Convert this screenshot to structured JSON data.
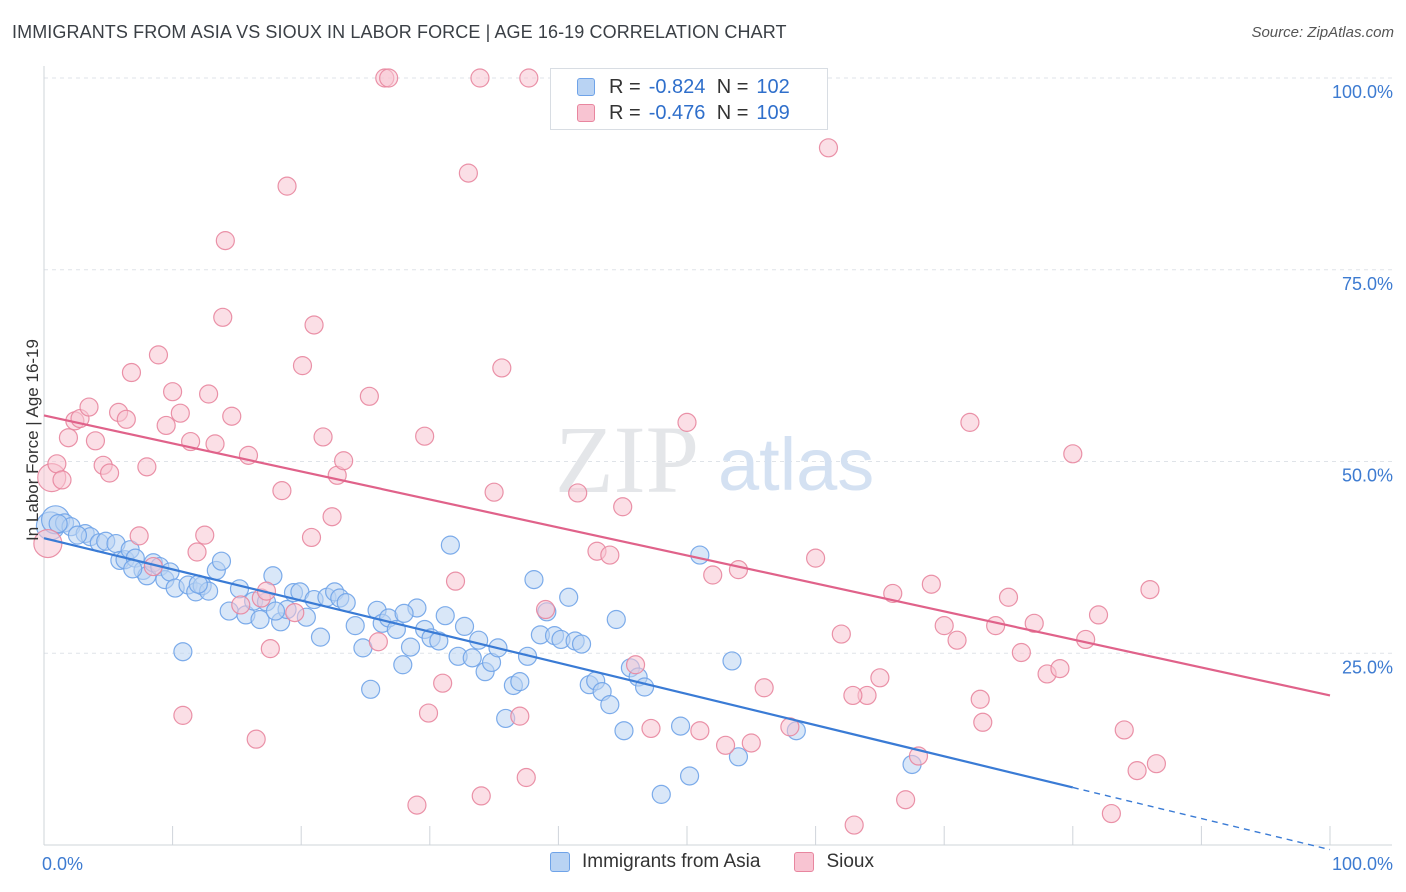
{
  "title": "IMMIGRANTS FROM ASIA VS SIOUX IN LABOR FORCE | AGE 16-19 CORRELATION CHART",
  "source": "Source: ZipAtlas.com",
  "watermark": {
    "zip": "ZIP",
    "atlas": "atlas"
  },
  "legend": {
    "r_label": "R =",
    "n_label": "N =",
    "series": [
      {
        "name": "Immigrants from Asia",
        "r": "-0.824",
        "n": "102",
        "color": "#6fa3e8",
        "fill": "#b9d3f3"
      },
      {
        "name": "Sioux",
        "r": "-0.476",
        "n": "109",
        "color": "#e8869f",
        "fill": "#f8c4d2"
      }
    ]
  },
  "chart_data": {
    "type": "scatter",
    "title": "IMMIGRANTS FROM ASIA VS SIOUX IN LABOR FORCE | AGE 16-19 CORRELATION CHART",
    "xlabel": "",
    "ylabel": "In Labor Force | Age 16-19",
    "xlim": [
      0,
      100
    ],
    "ylim": [
      0,
      100
    ],
    "x_tick_labels": [
      "0.0%",
      "100.0%"
    ],
    "y_tick_labels": [
      "25.0%",
      "50.0%",
      "75.0%",
      "100.0%"
    ],
    "y_ticks": [
      25,
      50,
      75,
      100
    ],
    "grid": true,
    "series": [
      {
        "name": "Immigrants from Asia",
        "color": "#3a7bd5",
        "trend": {
          "x0": 0,
          "y0": 40,
          "x1": 80,
          "y1": 7.5,
          "dash_x1": 100,
          "dash_y1": -0.6
        },
        "points": [
          [
            0.5,
            41.6
          ],
          [
            0.9,
            42.4
          ],
          [
            1.6,
            42.0
          ],
          [
            2.1,
            41.5
          ],
          [
            3.2,
            40.6
          ],
          [
            3.6,
            40.2
          ],
          [
            4.3,
            39.4
          ],
          [
            4.8,
            39.6
          ],
          [
            5.6,
            39.3
          ],
          [
            5.9,
            37.1
          ],
          [
            6.3,
            37.2
          ],
          [
            6.7,
            38.5
          ],
          [
            7.1,
            37.4
          ],
          [
            7.7,
            35.8
          ],
          [
            8.0,
            35.1
          ],
          [
            8.5,
            36.8
          ],
          [
            9.0,
            36.3
          ],
          [
            9.4,
            34.6
          ],
          [
            9.8,
            35.6
          ],
          [
            10.2,
            33.5
          ],
          [
            10.8,
            25.2
          ],
          [
            11.2,
            33.9
          ],
          [
            11.8,
            33.0
          ],
          [
            12.3,
            33.8
          ],
          [
            12.8,
            33.1
          ],
          [
            13.4,
            35.8
          ],
          [
            13.8,
            37.0
          ],
          [
            14.4,
            30.5
          ],
          [
            15.2,
            33.4
          ],
          [
            15.7,
            30.0
          ],
          [
            16.3,
            31.8
          ],
          [
            16.8,
            29.4
          ],
          [
            17.3,
            31.7
          ],
          [
            17.8,
            35.1
          ],
          [
            18.4,
            29.1
          ],
          [
            18.9,
            30.7
          ],
          [
            19.4,
            32.9
          ],
          [
            19.9,
            33.0
          ],
          [
            20.4,
            29.7
          ],
          [
            21.0,
            32.0
          ],
          [
            21.5,
            27.1
          ],
          [
            22.0,
            32.3
          ],
          [
            22.6,
            33.0
          ],
          [
            23.0,
            32.2
          ],
          [
            23.5,
            31.6
          ],
          [
            24.2,
            28.6
          ],
          [
            24.8,
            25.7
          ],
          [
            25.4,
            20.3
          ],
          [
            25.9,
            30.6
          ],
          [
            26.3,
            28.9
          ],
          [
            26.8,
            29.6
          ],
          [
            27.4,
            28.1
          ],
          [
            27.9,
            23.5
          ],
          [
            28.5,
            25.8
          ],
          [
            29.0,
            30.9
          ],
          [
            29.6,
            28.1
          ],
          [
            30.1,
            27.0
          ],
          [
            30.7,
            26.6
          ],
          [
            31.2,
            29.9
          ],
          [
            31.6,
            39.1
          ],
          [
            32.2,
            24.6
          ],
          [
            32.7,
            28.5
          ],
          [
            33.3,
            24.4
          ],
          [
            33.8,
            26.7
          ],
          [
            34.3,
            22.6
          ],
          [
            34.8,
            23.8
          ],
          [
            35.3,
            25.7
          ],
          [
            35.9,
            16.5
          ],
          [
            36.5,
            20.8
          ],
          [
            37.0,
            21.3
          ],
          [
            37.6,
            24.6
          ],
          [
            38.1,
            34.6
          ],
          [
            38.6,
            27.4
          ],
          [
            39.1,
            30.4
          ],
          [
            39.7,
            27.3
          ],
          [
            40.2,
            26.8
          ],
          [
            40.8,
            32.3
          ],
          [
            41.3,
            26.6
          ],
          [
            41.8,
            26.2
          ],
          [
            42.4,
            20.9
          ],
          [
            42.9,
            21.4
          ],
          [
            43.4,
            20.0
          ],
          [
            44.0,
            18.3
          ],
          [
            44.5,
            29.4
          ],
          [
            45.1,
            14.9
          ],
          [
            45.6,
            23.1
          ],
          [
            46.2,
            21.9
          ],
          [
            46.7,
            20.6
          ],
          [
            48.0,
            6.6
          ],
          [
            49.5,
            15.5
          ],
          [
            50.2,
            9.0
          ],
          [
            51.0,
            37.8
          ],
          [
            53.5,
            24.0
          ],
          [
            54.0,
            11.5
          ],
          [
            58.5,
            14.9
          ],
          [
            67.5,
            10.5
          ],
          [
            1.1,
            41.9
          ],
          [
            2.6,
            40.4
          ],
          [
            6.9,
            36.0
          ],
          [
            12.0,
            34.0
          ],
          [
            18.0,
            30.5
          ],
          [
            28.0,
            30.2
          ]
        ]
      },
      {
        "name": "Sioux",
        "color": "#e0628a",
        "trend": {
          "x0": 0,
          "y0": 56,
          "x1": 100,
          "y1": 19.5
        },
        "points": [
          [
            0.3,
            39.3
          ],
          [
            0.6,
            47.9
          ],
          [
            1.0,
            49.7
          ],
          [
            1.4,
            47.6
          ],
          [
            1.9,
            53.1
          ],
          [
            2.4,
            55.3
          ],
          [
            2.8,
            55.6
          ],
          [
            3.5,
            57.1
          ],
          [
            4.0,
            52.7
          ],
          [
            4.6,
            49.5
          ],
          [
            5.1,
            48.5
          ],
          [
            5.8,
            56.4
          ],
          [
            6.4,
            55.5
          ],
          [
            6.8,
            61.6
          ],
          [
            7.4,
            40.3
          ],
          [
            8.0,
            49.3
          ],
          [
            8.5,
            36.3
          ],
          [
            8.9,
            63.9
          ],
          [
            9.5,
            54.7
          ],
          [
            10.0,
            59.1
          ],
          [
            10.6,
            56.3
          ],
          [
            10.8,
            16.9
          ],
          [
            11.4,
            52.6
          ],
          [
            11.9,
            38.2
          ],
          [
            12.5,
            40.4
          ],
          [
            12.8,
            58.8
          ],
          [
            13.3,
            52.3
          ],
          [
            13.9,
            68.8
          ],
          [
            14.1,
            78.8
          ],
          [
            14.6,
            55.9
          ],
          [
            15.3,
            31.3
          ],
          [
            15.9,
            50.8
          ],
          [
            16.5,
            13.8
          ],
          [
            16.9,
            32.2
          ],
          [
            17.3,
            33.1
          ],
          [
            17.6,
            25.6
          ],
          [
            18.5,
            46.2
          ],
          [
            18.9,
            85.9
          ],
          [
            19.5,
            30.3
          ],
          [
            20.1,
            62.5
          ],
          [
            20.8,
            40.1
          ],
          [
            21.0,
            67.8
          ],
          [
            21.7,
            53.2
          ],
          [
            22.4,
            42.8
          ],
          [
            22.8,
            48.2
          ],
          [
            23.3,
            50.1
          ],
          [
            25.3,
            58.5
          ],
          [
            26.0,
            26.5
          ],
          [
            26.5,
            100.0
          ],
          [
            26.8,
            100.0
          ],
          [
            29.0,
            5.2
          ],
          [
            29.6,
            53.3
          ],
          [
            29.9,
            17.2
          ],
          [
            31.0,
            21.1
          ],
          [
            32.0,
            34.4
          ],
          [
            33.0,
            87.6
          ],
          [
            34.0,
            6.4
          ],
          [
            35.0,
            46.0
          ],
          [
            35.6,
            62.2
          ],
          [
            37.0,
            16.8
          ],
          [
            37.7,
            100.0
          ],
          [
            39.0,
            30.7
          ],
          [
            41.5,
            45.9
          ],
          [
            43.0,
            38.3
          ],
          [
            44.0,
            37.8
          ],
          [
            45.0,
            44.1
          ],
          [
            46.0,
            23.5
          ],
          [
            47.2,
            15.2
          ],
          [
            50.0,
            55.1
          ],
          [
            51.0,
            14.9
          ],
          [
            52.0,
            35.2
          ],
          [
            53.0,
            13.0
          ],
          [
            54.0,
            35.9
          ],
          [
            55.0,
            13.3
          ],
          [
            58.0,
            15.4
          ],
          [
            60.0,
            37.4
          ],
          [
            61.0,
            90.9
          ],
          [
            62.0,
            27.5
          ],
          [
            63.0,
            2.6
          ],
          [
            64.0,
            19.5
          ],
          [
            65.0,
            21.8
          ],
          [
            66.0,
            32.8
          ],
          [
            67.0,
            5.9
          ],
          [
            68.0,
            11.6
          ],
          [
            69.0,
            34.0
          ],
          [
            70.0,
            28.6
          ],
          [
            71.0,
            26.7
          ],
          [
            72.0,
            55.1
          ],
          [
            73.0,
            16.0
          ],
          [
            74.0,
            28.6
          ],
          [
            75.0,
            32.3
          ],
          [
            76.0,
            25.1
          ],
          [
            77.0,
            28.9
          ],
          [
            78.0,
            22.3
          ],
          [
            79.0,
            23.0
          ],
          [
            80.0,
            51.0
          ],
          [
            81.0,
            26.8
          ],
          [
            82.0,
            30.0
          ],
          [
            83.0,
            4.1
          ],
          [
            84.0,
            15.0
          ],
          [
            85.0,
            9.7
          ],
          [
            86.0,
            33.3
          ],
          [
            62.9,
            19.5
          ],
          [
            33.9,
            100.0
          ],
          [
            41.0,
            100.0
          ],
          [
            37.5,
            8.8
          ],
          [
            56.0,
            20.5
          ],
          [
            72.8,
            19.0
          ],
          [
            86.5,
            10.6
          ]
        ]
      }
    ]
  }
}
